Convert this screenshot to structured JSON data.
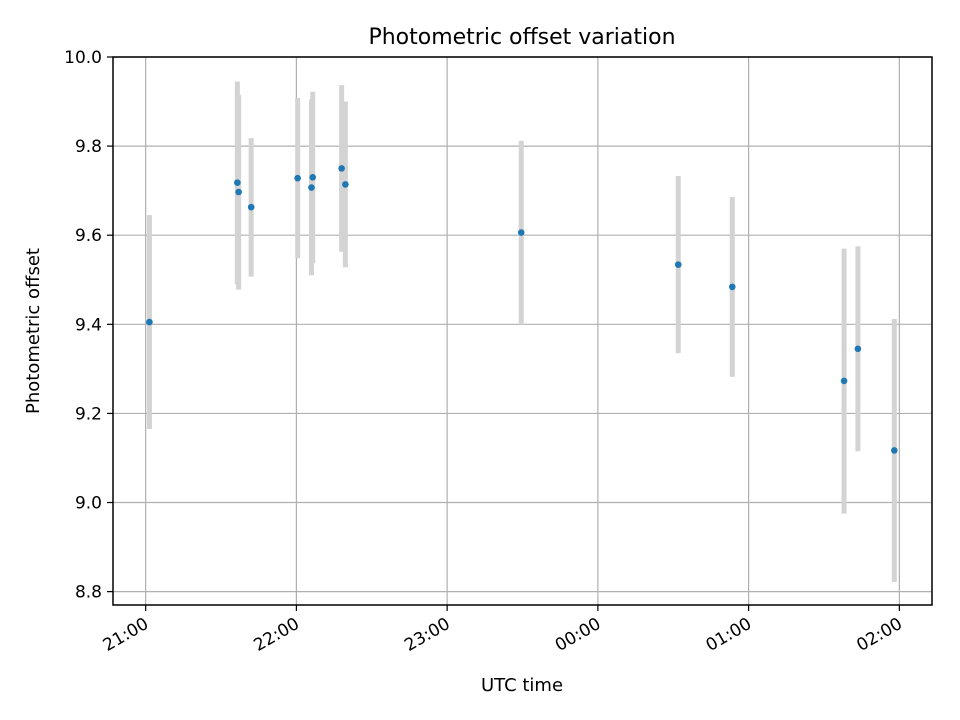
{
  "chart_data": {
    "type": "scatter",
    "title": "Photometric offset variation",
    "xlabel": "UTC time",
    "ylabel": "Photometric offset",
    "x_axis_kind": "time",
    "xlim": [
      "2000-01-01T20:47:00",
      "2000-01-02T02:13:00"
    ],
    "ylim": [
      8.77,
      10.0
    ],
    "x_ticks": [
      {
        "t": "2000-01-01T21:00:00",
        "label": "21:00"
      },
      {
        "t": "2000-01-01T22:00:00",
        "label": "22:00"
      },
      {
        "t": "2000-01-01T23:00:00",
        "label": "23:00"
      },
      {
        "t": "2000-01-02T00:00:00",
        "label": "00:00"
      },
      {
        "t": "2000-01-02T01:00:00",
        "label": "01:00"
      },
      {
        "t": "2000-01-02T02:00:00",
        "label": "02:00"
      }
    ],
    "y_ticks": [
      8.8,
      9.0,
      9.2,
      9.4,
      9.6,
      9.8,
      10.0
    ],
    "y_tick_labels": [
      "8.8",
      "9.0",
      "9.2",
      "9.4",
      "9.6",
      "9.8",
      "10.0"
    ],
    "grid": true,
    "x_tick_rotation_deg": 30,
    "colors": {
      "point": "#1f77b4",
      "errorbar": "#d3d3d3",
      "grid": "#b0b0b0"
    },
    "points": [
      {
        "t": "2000-01-01T21:01:30",
        "y": 9.405,
        "low": 9.165,
        "high": 9.645
      },
      {
        "t": "2000-01-01T21:36:30",
        "y": 9.718,
        "low": 9.49,
        "high": 9.945
      },
      {
        "t": "2000-01-01T21:37:00",
        "y": 9.697,
        "low": 9.478,
        "high": 9.915
      },
      {
        "t": "2000-01-01T21:42:00",
        "y": 9.663,
        "low": 9.507,
        "high": 9.818
      },
      {
        "t": "2000-01-01T22:00:30",
        "y": 9.728,
        "low": 9.548,
        "high": 9.908
      },
      {
        "t": "2000-01-01T22:06:00",
        "y": 9.707,
        "low": 9.51,
        "high": 9.905
      },
      {
        "t": "2000-01-01T22:06:30",
        "y": 9.73,
        "low": 9.537,
        "high": 9.922
      },
      {
        "t": "2000-01-01T22:18:00",
        "y": 9.75,
        "low": 9.563,
        "high": 9.937
      },
      {
        "t": "2000-01-01T22:19:30",
        "y": 9.714,
        "low": 9.528,
        "high": 9.9
      },
      {
        "t": "2000-01-01T23:29:30",
        "y": 9.606,
        "low": 9.4,
        "high": 9.812
      },
      {
        "t": "2000-01-02T00:32:00",
        "y": 9.534,
        "low": 9.335,
        "high": 9.733
      },
      {
        "t": "2000-01-02T00:53:30",
        "y": 9.484,
        "low": 9.282,
        "high": 9.686
      },
      {
        "t": "2000-01-02T01:38:00",
        "y": 9.273,
        "low": 8.975,
        "high": 9.57
      },
      {
        "t": "2000-01-02T01:43:30",
        "y": 9.345,
        "low": 9.115,
        "high": 9.575
      },
      {
        "t": "2000-01-02T01:58:00",
        "y": 9.117,
        "low": 8.822,
        "high": 9.412
      }
    ]
  }
}
